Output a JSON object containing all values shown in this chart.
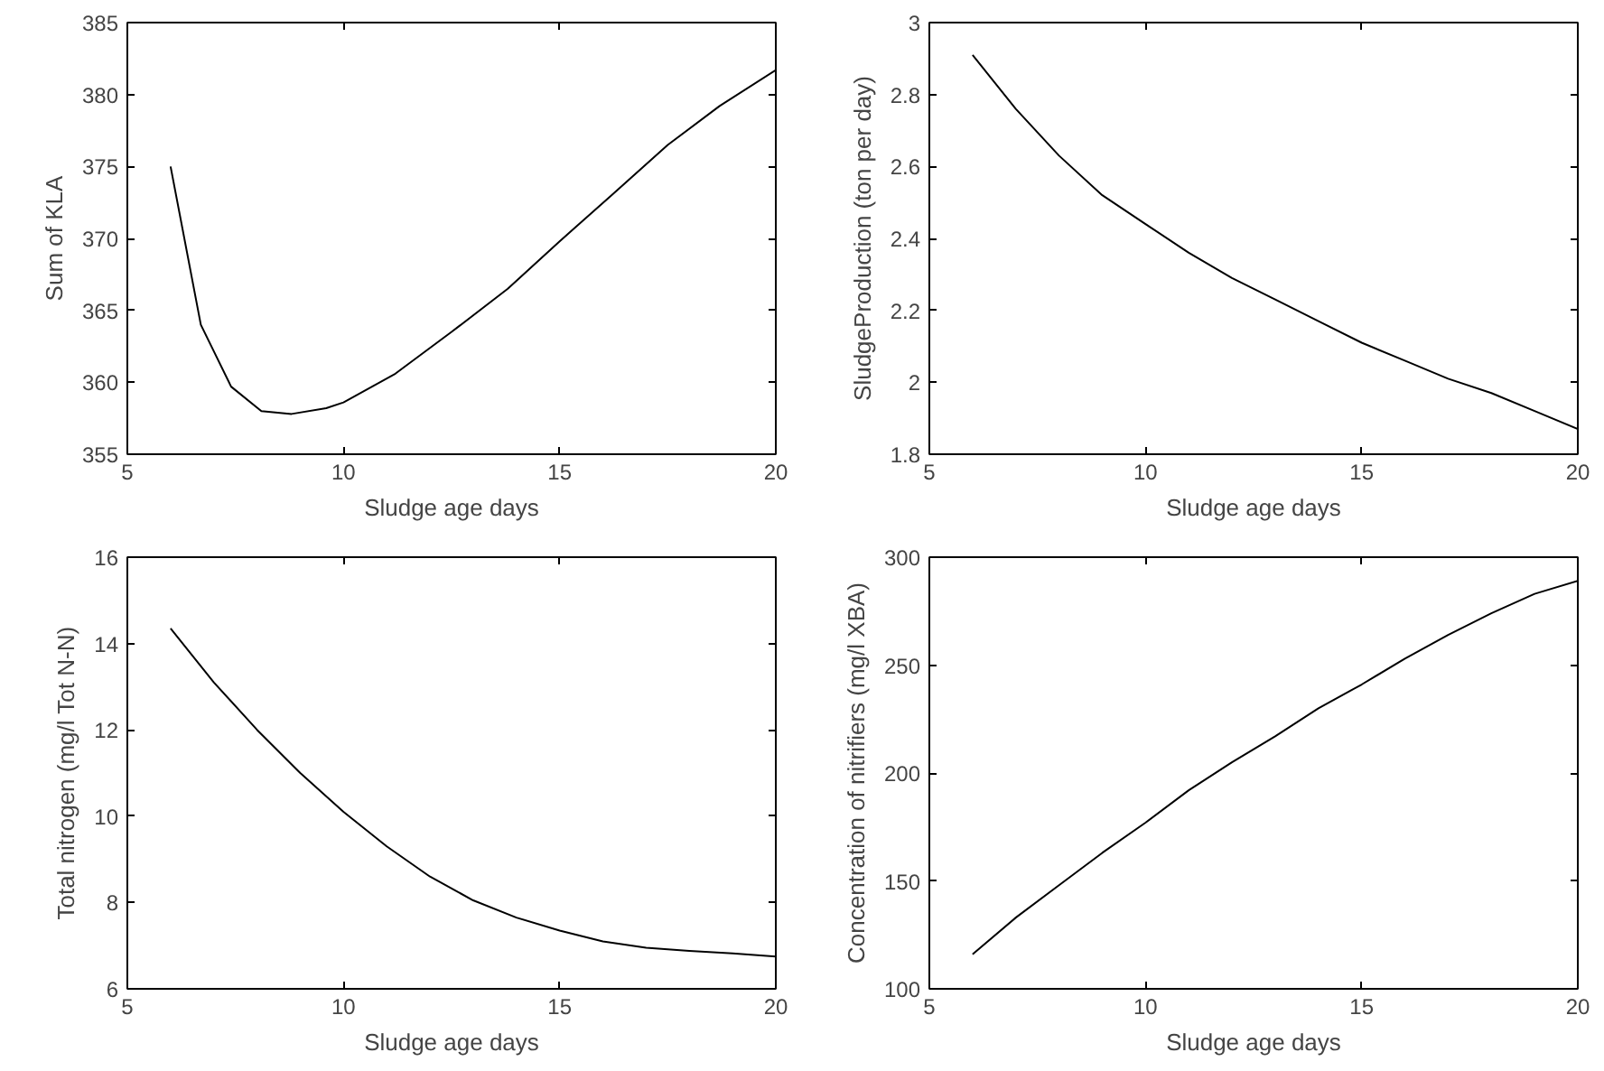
{
  "chart_data": [
    {
      "type": "line",
      "xlabel": "Sludge age days",
      "ylabel": "Sum of KLA",
      "x": [
        6,
        6.7,
        7.4,
        8.1,
        8.8,
        9.6,
        10,
        11.2,
        12.5,
        13.8,
        15,
        16.2,
        17.5,
        18.7,
        20
      ],
      "series": [
        {
          "color": "#000000",
          "values": [
            375,
            364,
            359.7,
            358,
            357.8,
            358.2,
            358.6,
            360.6,
            363.5,
            366.5,
            369.8,
            373,
            376.5,
            379.2,
            381.7
          ]
        }
      ],
      "xlim": [
        5,
        20
      ],
      "xticks": [
        5,
        10,
        15,
        20
      ],
      "ylim": [
        355,
        385
      ],
      "yticks": [
        355,
        360,
        365,
        370,
        375,
        380,
        385
      ],
      "grid": false
    },
    {
      "type": "line",
      "xlabel": "Sludge age days",
      "ylabel": "SludgeProduction (ton per day)",
      "x": [
        6,
        7,
        8,
        9,
        10,
        11,
        12,
        13,
        14,
        15,
        16,
        17,
        18,
        19,
        20
      ],
      "series": [
        {
          "color": "#000000",
          "values": [
            2.91,
            2.76,
            2.63,
            2.52,
            2.44,
            2.36,
            2.29,
            2.23,
            2.17,
            2.11,
            2.06,
            2.01,
            1.97,
            1.92,
            1.87
          ]
        }
      ],
      "xlim": [
        5,
        20
      ],
      "xticks": [
        5,
        10,
        15,
        20
      ],
      "ylim": [
        1.8,
        3
      ],
      "yticks": [
        1.8,
        2,
        2.2,
        2.4,
        2.6,
        2.8,
        3
      ],
      "grid": false
    },
    {
      "type": "line",
      "xlabel": "Sludge age days",
      "ylabel": "Total nitrogen (mg/l Tot N-N)",
      "x": [
        6,
        7,
        8,
        9,
        10,
        11,
        12,
        13,
        14,
        15,
        16,
        17,
        18,
        19,
        20
      ],
      "series": [
        {
          "color": "#000000",
          "values": [
            14.35,
            13.1,
            12.0,
            11.0,
            10.1,
            9.3,
            8.6,
            8.05,
            7.65,
            7.35,
            7.1,
            6.95,
            6.88,
            6.82,
            6.75
          ]
        }
      ],
      "xlim": [
        5,
        20
      ],
      "xticks": [
        5,
        10,
        15,
        20
      ],
      "ylim": [
        6,
        16
      ],
      "yticks": [
        6,
        8,
        10,
        12,
        14,
        16
      ],
      "grid": false
    },
    {
      "type": "line",
      "xlabel": "Sludge age days",
      "ylabel": "Concentration of nitrifiers (mg/l XBA)",
      "x": [
        6,
        7,
        8,
        9,
        10,
        11,
        12,
        13,
        14,
        15,
        16,
        17,
        18,
        19,
        20
      ],
      "series": [
        {
          "color": "#000000",
          "values": [
            116,
            133,
            148,
            163,
            177,
            192,
            205,
            217,
            230,
            241,
            253,
            264,
            274,
            283,
            289
          ]
        }
      ],
      "xlim": [
        5,
        20
      ],
      "xticks": [
        5,
        10,
        15,
        20
      ],
      "ylim": [
        100,
        300
      ],
      "yticks": [
        100,
        150,
        200,
        250,
        300
      ],
      "grid": false
    }
  ]
}
